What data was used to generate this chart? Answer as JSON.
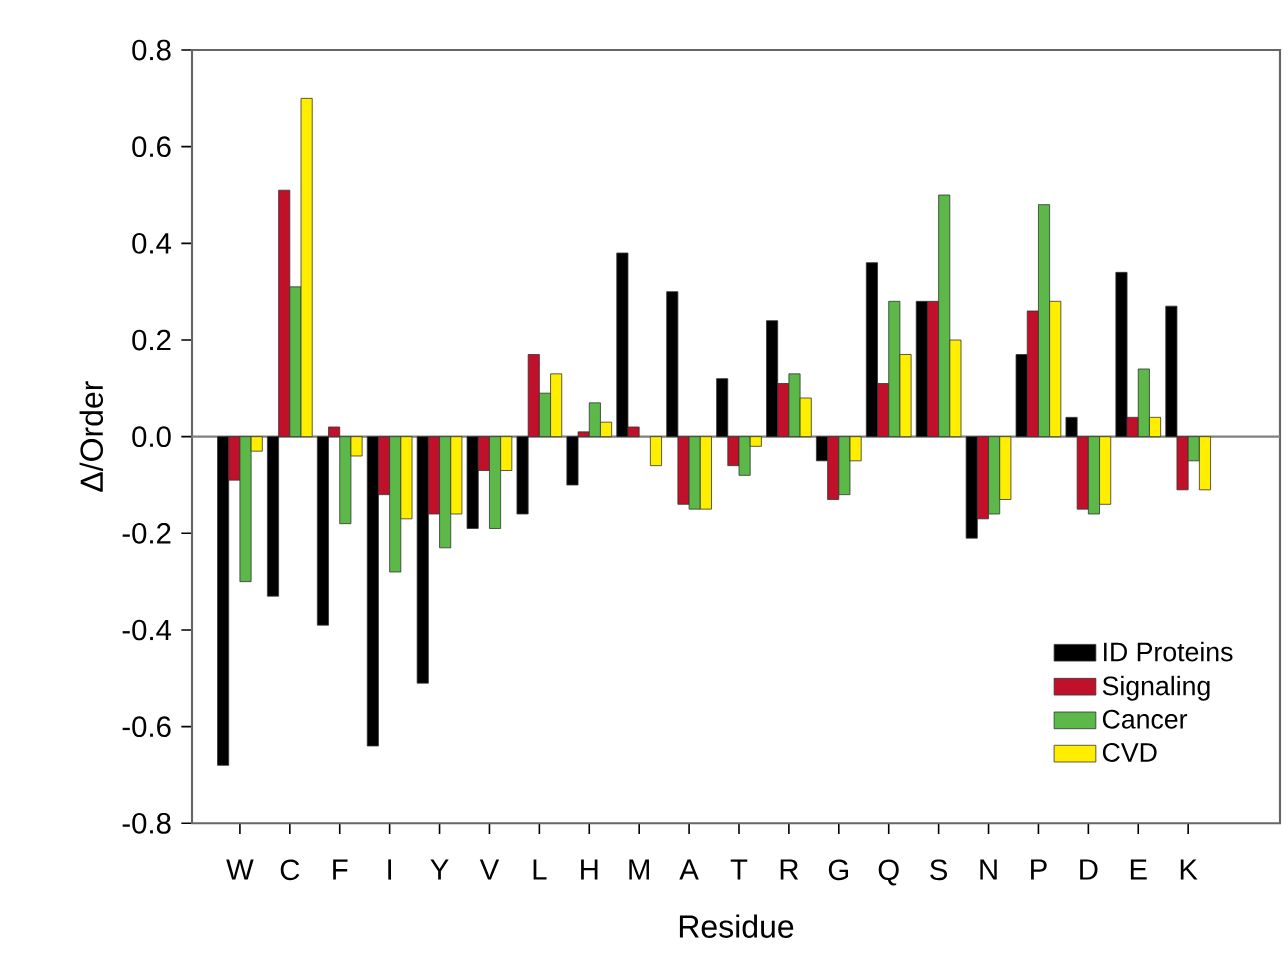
{
  "chart_data": {
    "type": "bar",
    "xlabel": "Residue",
    "ylabel": "Δ/Order",
    "categories": [
      "W",
      "C",
      "F",
      "I",
      "Y",
      "V",
      "L",
      "H",
      "M",
      "A",
      "T",
      "R",
      "G",
      "Q",
      "S",
      "N",
      "P",
      "D",
      "E",
      "K"
    ],
    "series": [
      {
        "name": "ID Proteins",
        "color": "#000000",
        "values": [
          -0.68,
          -0.33,
          -0.39,
          -0.64,
          -0.51,
          -0.19,
          -0.16,
          -0.1,
          0.38,
          0.3,
          0.12,
          0.24,
          -0.05,
          0.36,
          0.28,
          -0.21,
          0.17,
          0.04,
          0.34,
          0.27
        ]
      },
      {
        "name": "Signaling",
        "color": "#c0102a",
        "values": [
          -0.09,
          0.51,
          0.02,
          -0.12,
          -0.16,
          -0.07,
          0.17,
          0.01,
          0.02,
          -0.14,
          -0.06,
          0.11,
          -0.13,
          0.11,
          0.28,
          -0.17,
          0.26,
          -0.15,
          0.04,
          -0.11
        ]
      },
      {
        "name": "Cancer",
        "color": "#5cb848",
        "values": [
          -0.3,
          0.31,
          -0.18,
          -0.28,
          -0.23,
          -0.19,
          0.09,
          0.07,
          null,
          -0.15,
          -0.08,
          0.13,
          -0.12,
          0.28,
          0.5,
          -0.16,
          0.48,
          -0.16,
          0.14,
          -0.05
        ]
      },
      {
        "name": "CVD",
        "color": "#ffee00",
        "values": [
          -0.03,
          0.7,
          -0.04,
          -0.17,
          -0.16,
          -0.07,
          0.13,
          0.03,
          -0.06,
          -0.15,
          -0.02,
          0.08,
          -0.05,
          0.17,
          0.2,
          -0.13,
          0.28,
          -0.14,
          0.04,
          -0.11
        ]
      }
    ],
    "ylim": [
      -0.8,
      0.8
    ],
    "yticks": [
      -0.8,
      -0.6,
      -0.4,
      -0.2,
      {
        "value": 0,
        "label": "0.0"
      },
      0.2,
      0.4,
      0.6,
      0.8
    ],
    "ref_lines": [
      {
        "axis": "y",
        "value": 0,
        "color": "#808080"
      }
    ],
    "legend": "bottom right",
    "grid": false
  }
}
